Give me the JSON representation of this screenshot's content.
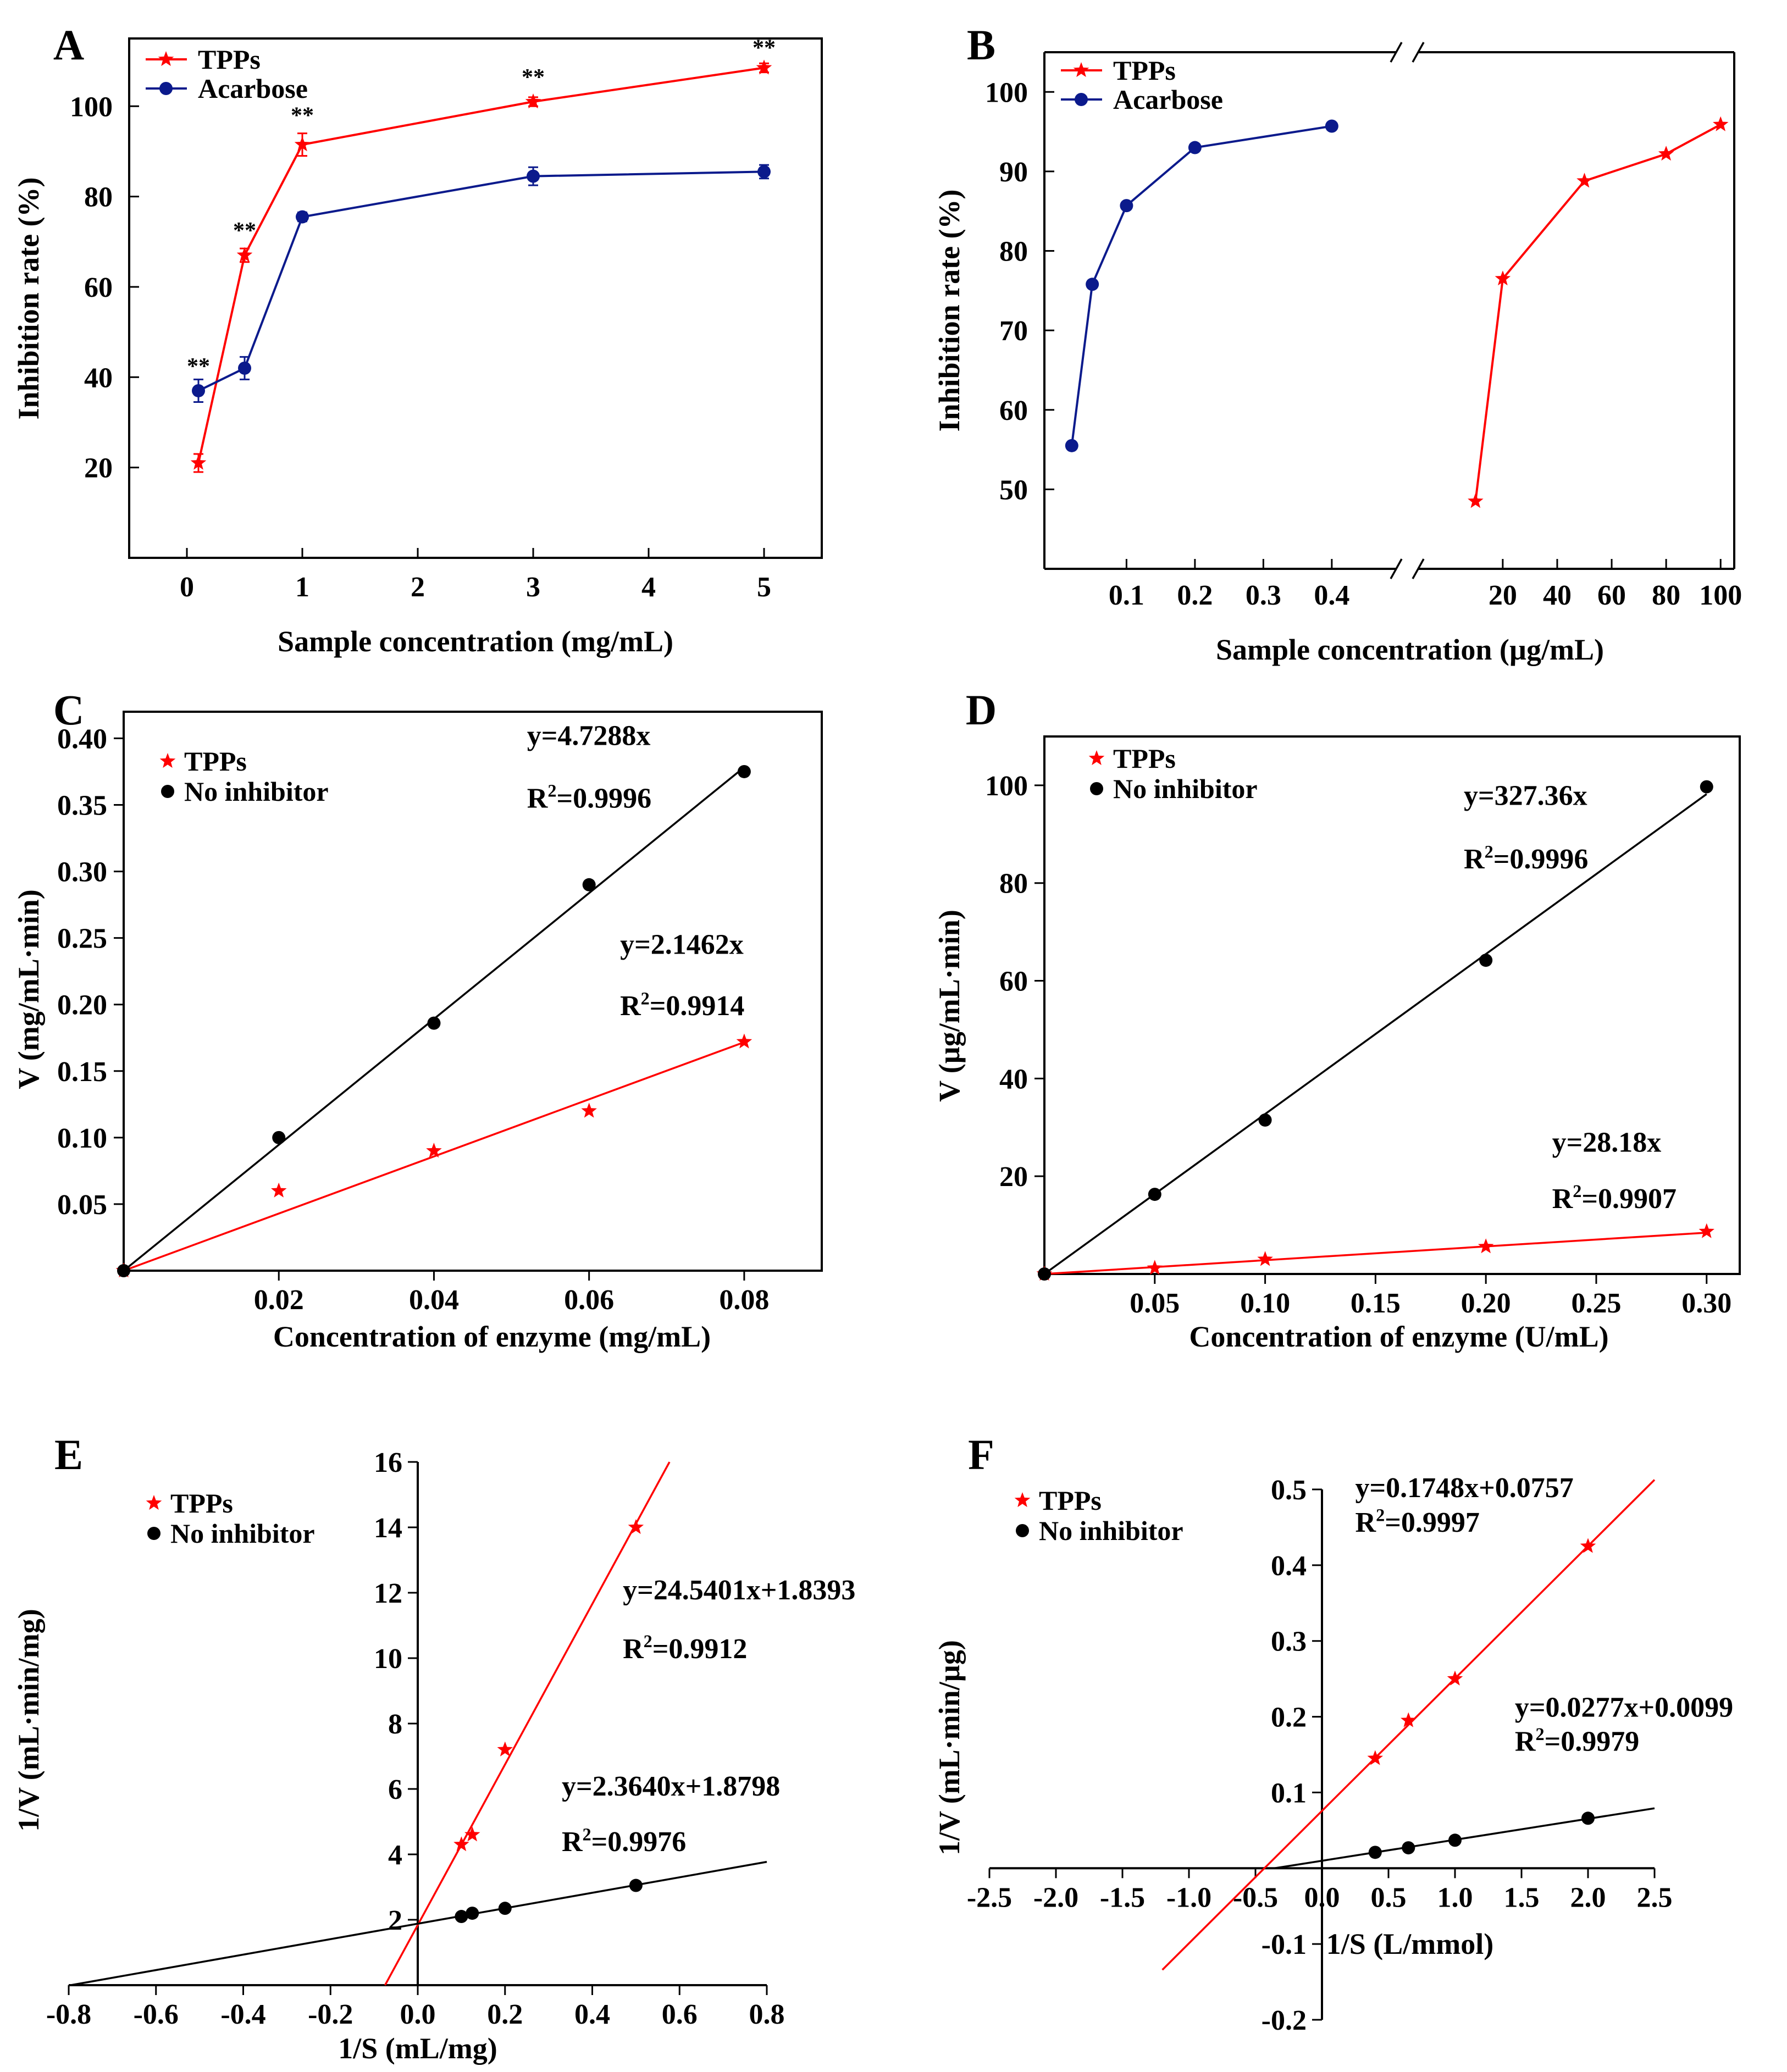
{
  "colors": {
    "red": "#ff0000",
    "blue": "#0b1a8c",
    "black": "#000000"
  },
  "chart_data": [
    {
      "id": "A",
      "panel_label": "A",
      "type": "line",
      "xlabel": "Sample concentration (mg/mL)",
      "ylabel": "Inhibition rate (%)",
      "xlim": [
        -0.5,
        5.5
      ],
      "ylim": [
        0,
        115
      ],
      "xticks": [
        0,
        1,
        2,
        3,
        4,
        5
      ],
      "xtick_labels": [
        "0",
        "1",
        "2",
        "3",
        "4",
        "5"
      ],
      "yticks": [
        20,
        40,
        60,
        80,
        100
      ],
      "ytick_labels": [
        "20",
        "40",
        "60",
        "80",
        "100"
      ],
      "legend": {
        "position": "top-left",
        "style": "line",
        "entries": [
          "TPPs",
          "Acarbose"
        ]
      },
      "series": [
        {
          "name": "TPPs",
          "color": "red",
          "marker": "star",
          "points": [
            [
              0.1,
              21
            ],
            [
              0.5,
              67
            ],
            [
              1,
              91.5
            ],
            [
              3,
              101
            ],
            [
              5,
              108.5
            ]
          ],
          "errors": [
            2,
            1.5,
            2.5,
            1,
            1
          ]
        },
        {
          "name": "Acarbose",
          "color": "blue",
          "marker": "circle",
          "points": [
            [
              0.1,
              37
            ],
            [
              0.5,
              42
            ],
            [
              1,
              75.5
            ],
            [
              3,
              84.5
            ],
            [
              5,
              85.5
            ]
          ],
          "errors": [
            2.5,
            2.5,
            1,
            2,
            1.5
          ]
        }
      ],
      "annotations": [
        {
          "text": "**",
          "x": 0.1,
          "y": 42.5
        },
        {
          "text": "**",
          "x": 0.5,
          "y": 72.5
        },
        {
          "text": "**",
          "x": 1,
          "y": 98
        },
        {
          "text": "**",
          "x": 3,
          "y": 106.5
        },
        {
          "text": "**",
          "x": 5,
          "y": 113
        }
      ]
    },
    {
      "id": "B",
      "panel_label": "B",
      "type": "line",
      "xlabel": "Sample concentration (µg/mL)",
      "ylabel": "Inhibition rate (%)",
      "broken_axis": true,
      "segments": [
        {
          "xlim": [
            -0.02,
            0.47
          ]
        },
        {
          "xlim": [
            -5,
            105
          ]
        }
      ],
      "ylim": [
        40,
        105
      ],
      "yticks": [
        50,
        60,
        70,
        80,
        90,
        100
      ],
      "ytick_labels": [
        "50",
        "60",
        "70",
        "80",
        "90",
        "100"
      ],
      "xticks_seg1": [
        0.1,
        0.2,
        0.3,
        0.4
      ],
      "xtick_labels_seg1": [
        "0.1",
        "0.2",
        "0.3",
        "0.4"
      ],
      "xticks_seg2": [
        20,
        40,
        60,
        80,
        100
      ],
      "xtick_labels_seg2": [
        "20",
        "40",
        "60",
        "80",
        "100"
      ],
      "legend": {
        "position": "top-left",
        "style": "line",
        "entries": [
          "TPPs",
          "Acarbose"
        ]
      },
      "series": [
        {
          "name": "Acarbose",
          "color": "blue",
          "marker": "circle",
          "segment": 0,
          "points": [
            [
              0.02,
              55.5
            ],
            [
              0.05,
              75.8
            ],
            [
              0.1,
              85.7
            ],
            [
              0.2,
              93
            ],
            [
              0.4,
              95.7
            ]
          ]
        },
        {
          "name": "TPPs",
          "color": "red",
          "marker": "star",
          "segment": 1,
          "points": [
            [
              10,
              48.5
            ],
            [
              20,
              76.5
            ],
            [
              50,
              88.8
            ],
            [
              80,
              92.2
            ],
            [
              100,
              95.9
            ]
          ]
        }
      ]
    },
    {
      "id": "C",
      "panel_label": "C",
      "type": "scatter",
      "xlabel": "Concentration of enzyme (mg/mL)",
      "ylabel": "V (mg/mL·min)",
      "xlim": [
        0,
        0.09
      ],
      "ylim": [
        0,
        0.42
      ],
      "xticks": [
        0.02,
        0.04,
        0.06,
        0.08
      ],
      "xtick_labels": [
        "0.02",
        "0.04",
        "0.06",
        "0.08"
      ],
      "yticks": [
        0.05,
        0.1,
        0.15,
        0.2,
        0.25,
        0.3,
        0.35,
        0.4
      ],
      "ytick_labels": [
        "0.05",
        "0.10",
        "0.15",
        "0.20",
        "0.25",
        "0.30",
        "0.35",
        "0.40"
      ],
      "legend": {
        "position": "top-left",
        "style": "marker",
        "entries": [
          "TPPs",
          "No inhibitor"
        ]
      },
      "series": [
        {
          "name": "TPPs",
          "color": "red",
          "marker": "star",
          "points": [
            [
              0,
              0
            ],
            [
              0.02,
              0.06
            ],
            [
              0.04,
              0.09
            ],
            [
              0.06,
              0.12
            ],
            [
              0.08,
              0.172
            ]
          ],
          "fit": {
            "slope": 2.1462,
            "intercept": 0,
            "x_range": [
              0,
              0.08
            ]
          }
        },
        {
          "name": "No inhibitor",
          "color": "black",
          "marker": "circle",
          "points": [
            [
              0,
              0
            ],
            [
              0.02,
              0.1
            ],
            [
              0.04,
              0.186
            ],
            [
              0.06,
              0.29
            ],
            [
              0.08,
              0.375
            ]
          ],
          "fit": {
            "slope": 4.7288,
            "intercept": 0,
            "x_range": [
              0,
              0.08
            ]
          }
        }
      ],
      "equations": [
        {
          "eq": "y=4.7288x",
          "r2": "=0.9996",
          "x": 0.052,
          "y": 0.395,
          "y2": 0.348
        },
        {
          "eq": "y=2.1462x",
          "r2": "=0.9914",
          "x": 0.064,
          "y": 0.238,
          "y2": 0.192
        }
      ]
    },
    {
      "id": "D",
      "panel_label": "D",
      "type": "scatter",
      "xlabel": "Concentration of enzyme (U/mL)",
      "ylabel": "V (µg/mL·min)",
      "xlim": [
        0,
        0.315
      ],
      "ylim": [
        0,
        110
      ],
      "xticks": [
        0.05,
        0.1,
        0.15,
        0.2,
        0.25,
        0.3
      ],
      "xtick_labels": [
        "0.05",
        "0.10",
        "0.15",
        "0.20",
        "0.25",
        "0.30"
      ],
      "yticks": [
        20,
        40,
        60,
        80,
        100
      ],
      "ytick_labels": [
        "20",
        "40",
        "60",
        "80",
        "100"
      ],
      "legend": {
        "position": "top-left",
        "style": "marker",
        "entries": [
          "TPPs",
          "No inhibitor"
        ]
      },
      "series": [
        {
          "name": "TPPs",
          "color": "red",
          "marker": "star",
          "points": [
            [
              0,
              0
            ],
            [
              0.05,
              1.2
            ],
            [
              0.1,
              3
            ],
            [
              0.2,
              5.6
            ],
            [
              0.3,
              8.7
            ]
          ],
          "fit": {
            "slope": 28.18,
            "intercept": 0,
            "x_range": [
              0,
              0.3
            ]
          }
        },
        {
          "name": "No inhibitor",
          "color": "black",
          "marker": "circle",
          "points": [
            [
              0,
              0
            ],
            [
              0.05,
              16.3
            ],
            [
              0.1,
              31.5
            ],
            [
              0.2,
              64.2
            ],
            [
              0.3,
              99.7
            ]
          ],
          "fit": {
            "slope": 327.36,
            "intercept": 0,
            "x_range": [
              0,
              0.3
            ]
          }
        }
      ],
      "equations": [
        {
          "eq": "y=327.36x",
          "r2": "=0.9996",
          "x": 0.19,
          "y": 96,
          "y2": 83
        },
        {
          "eq": "y=28.18x",
          "r2": "=0.9907",
          "x": 0.23,
          "y": 25,
          "y2": 13.5
        }
      ]
    },
    {
      "id": "E",
      "panel_label": "E",
      "type": "scatter",
      "xlabel": "1/S (mL/mg)",
      "ylabel": "1/V (mL·min/mg)",
      "xlim": [
        -0.8,
        0.8
      ],
      "ylim": [
        0,
        16
      ],
      "xticks": [
        -0.8,
        -0.6,
        -0.4,
        -0.2,
        0,
        0.2,
        0.4,
        0.6,
        0.8
      ],
      "xtick_labels": [
        "-0.8",
        "-0.6",
        "-0.4",
        "-0.2",
        "0.0",
        "0.2",
        "0.4",
        "0.6",
        "0.8"
      ],
      "yticks": [
        2,
        4,
        6,
        8,
        10,
        12,
        14,
        16
      ],
      "ytick_labels": [
        "2",
        "4",
        "6",
        "8",
        "10",
        "12",
        "14",
        "16"
      ],
      "legend": {
        "position": "top-left",
        "style": "marker",
        "entries": [
          "TPPs",
          "No inhibitor"
        ]
      },
      "series": [
        {
          "name": "TPPs",
          "color": "red",
          "marker": "star",
          "points": [
            [
              0.1,
              4.3
            ],
            [
              0.125,
              4.6
            ],
            [
              0.2,
              7.2
            ],
            [
              0.5,
              14
            ]
          ],
          "fit": {
            "slope": 24.5401,
            "intercept": 1.8393,
            "x_range": [
              -0.075,
              0.577
            ]
          }
        },
        {
          "name": "No inhibitor",
          "color": "black",
          "marker": "circle",
          "points": [
            [
              0.1,
              2.1
            ],
            [
              0.125,
              2.2
            ],
            [
              0.2,
              2.35
            ],
            [
              0.5,
              3.05
            ]
          ],
          "fit": {
            "slope": 2.364,
            "intercept": 1.8798,
            "x_range": [
              -0.8,
              0.8
            ]
          }
        }
      ],
      "equations": [
        {
          "eq": "y=24.5401x+1.8393",
          "r2": "=0.9912",
          "x": 0.47,
          "y": 11.8,
          "y2": 10
        },
        {
          "eq": "y=2.3640x+1.8798",
          "r2": "=0.9976",
          "x": 0.33,
          "y": 5.8,
          "y2": 4.1
        }
      ]
    },
    {
      "id": "F",
      "panel_label": "F",
      "type": "scatter",
      "xlabel": "1/S (L/mmol)",
      "ylabel": "1/V (mL·min/µg)",
      "xlim": [
        -2.5,
        2.5
      ],
      "ylim": [
        -0.2,
        0.5
      ],
      "xticks": [
        -2.5,
        -2,
        -1.5,
        -1,
        -0.5,
        0,
        0.5,
        1,
        1.5,
        2,
        2.5
      ],
      "xtick_labels": [
        "-2.5",
        "-2.0",
        "-1.5",
        "-1.0",
        "-0.5",
        "0.0",
        "0.5",
        "1.0",
        "1.5",
        "2.0",
        "2.5"
      ],
      "yticks": [
        -0.2,
        -0.1,
        0.1,
        0.2,
        0.3,
        0.4,
        0.5
      ],
      "ytick_labels": [
        "-0.2",
        "-0.1",
        "0.1",
        "0.2",
        "0.3",
        "0.4",
        "0.5"
      ],
      "legend": {
        "position": "top-left",
        "style": "marker",
        "entries": [
          "TPPs",
          "No inhibitor"
        ]
      },
      "series": [
        {
          "name": "TPPs",
          "color": "red",
          "marker": "star",
          "points": [
            [
              0.4,
              0.145
            ],
            [
              0.65,
              0.195
            ],
            [
              1,
              0.25
            ],
            [
              2,
              0.425
            ]
          ],
          "fit": {
            "slope": 0.1748,
            "intercept": 0.0757,
            "x_range": [
              -1.2,
              2.5
            ]
          }
        },
        {
          "name": "No inhibitor",
          "color": "black",
          "marker": "circle",
          "points": [
            [
              0.4,
              0.021
            ],
            [
              0.65,
              0.027
            ],
            [
              1,
              0.037
            ],
            [
              2,
              0.066
            ]
          ],
          "fit": {
            "slope": 0.0277,
            "intercept": 0.0099,
            "x_range": [
              -0.36,
              2.5
            ]
          }
        }
      ],
      "equations": [
        {
          "eq": "y=0.1748x+0.0757",
          "r2": "=0.9997",
          "x": 0.25,
          "y": 0.49,
          "y2": 0.444
        },
        {
          "eq": "y=0.0277x+0.0099",
          "r2": "=0.9979",
          "x": 1.45,
          "y": 0.2,
          "y2": 0.155
        }
      ]
    }
  ]
}
